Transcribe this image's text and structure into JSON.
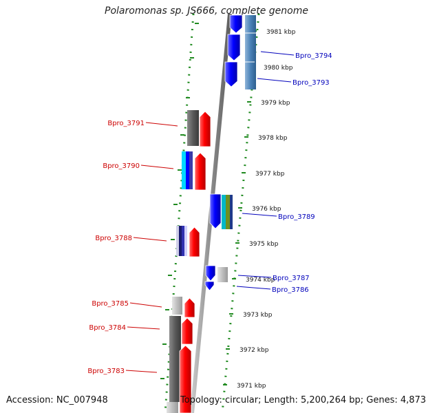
{
  "title": "Polaromonas sp. JS666, complete genome",
  "accession": "Accession: NC_007948",
  "topology": "Topology: circular; Length: 5,200,264 bp; Genes: 4,873",
  "colors": {
    "plus_label": "#cc0000",
    "minus_label": "#0000bb",
    "ruler_dots": "#1f8a1f",
    "backbone": "#8c8c8c"
  },
  "ticks": [
    "3981 kbp",
    "3980 kbp",
    "3979 kbp",
    "3978 kbp",
    "3977 kbp",
    "3976 kbp",
    "3975 kbp",
    "3974 kbp",
    "3973 kbp",
    "3972 kbp",
    "3971 kbp"
  ],
  "genes_left": [
    "Bpro_3791",
    "Bpro_3790",
    "Bpro_3788",
    "Bpro_3785",
    "Bpro_3784",
    "Bpro_3783"
  ],
  "genes_right": [
    "Bpro_3794",
    "Bpro_3793",
    "Bpro_3789",
    "Bpro_3787",
    "Bpro_3786"
  ]
}
